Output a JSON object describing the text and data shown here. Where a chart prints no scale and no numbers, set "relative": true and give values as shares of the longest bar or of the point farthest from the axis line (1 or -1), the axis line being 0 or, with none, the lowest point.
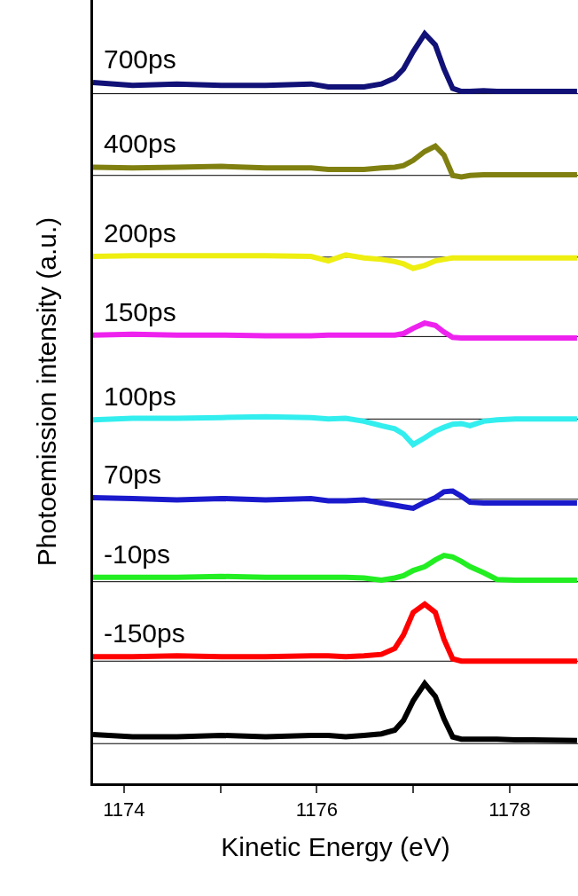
{
  "chart_data": {
    "type": "line",
    "relative": true,
    "xlabel": "Kinetic Energy (eV)",
    "ylabel": "Photoemission intensity (a.u.)",
    "xlim": [
      1173.68,
      1178.71
    ],
    "xticks": [
      1174,
      {
        "value": 1175,
        "label": null
      },
      1176,
      {
        "value": 1177,
        "label": null
      },
      1178
    ],
    "x": [
      1173.68,
      1174.09,
      1174.55,
      1175.01,
      1175.47,
      1175.94,
      1176.12,
      1176.3,
      1176.49,
      1176.67,
      1176.81,
      1176.9,
      1177.0,
      1177.12,
      1177.23,
      1177.32,
      1177.41,
      1177.5,
      1177.59,
      1177.73,
      1177.87,
      1178.06,
      1178.24,
      1178.7
    ],
    "grid": false,
    "legend": false,
    "marker": "none",
    "line_style": "solid",
    "series": [
      {
        "color": "#000000",
        "values": [
          0.065,
          0.062,
          0.062,
          0.064,
          0.062,
          0.064,
          0.064,
          0.062,
          0.064,
          0.066,
          0.071,
          0.084,
          0.11,
          0.133,
          0.116,
          0.086,
          0.062,
          0.059,
          0.059,
          0.059,
          0.059,
          0.058,
          0.058,
          0.057
        ]
      },
      {
        "name": "-150ps",
        "color": "#ff0000",
        "values": [
          0.169,
          0.169,
          0.17,
          0.169,
          0.169,
          0.17,
          0.17,
          0.169,
          0.17,
          0.172,
          0.18,
          0.198,
          0.228,
          0.239,
          0.228,
          0.192,
          0.166,
          0.163,
          0.163,
          0.163,
          0.163,
          0.163,
          0.163,
          0.163
        ]
      },
      {
        "name": "-10ps",
        "color": "#22ee22",
        "values": [
          0.275,
          0.275,
          0.275,
          0.276,
          0.275,
          0.275,
          0.275,
          0.275,
          0.274,
          0.271,
          0.274,
          0.277,
          0.284,
          0.289,
          0.298,
          0.304,
          0.302,
          0.296,
          0.289,
          0.281,
          0.272,
          0.271,
          0.271,
          0.271
        ]
      },
      {
        "name": "70ps",
        "color": "#1a1acc",
        "values": [
          0.381,
          0.38,
          0.378,
          0.38,
          0.378,
          0.38,
          0.377,
          0.377,
          0.378,
          0.374,
          0.371,
          0.369,
          0.367,
          0.375,
          0.381,
          0.389,
          0.39,
          0.383,
          0.375,
          0.374,
          0.374,
          0.374,
          0.374,
          0.374
        ]
      },
      {
        "name": "100ps",
        "color": "#33eeee",
        "values": [
          0.485,
          0.487,
          0.487,
          0.488,
          0.489,
          0.488,
          0.486,
          0.487,
          0.483,
          0.477,
          0.473,
          0.466,
          0.452,
          0.461,
          0.47,
          0.475,
          0.479,
          0.48,
          0.477,
          0.483,
          0.485,
          0.486,
          0.486,
          0.486
        ]
      },
      {
        "name": "150ps",
        "color": "#ee22ee",
        "values": [
          0.598,
          0.599,
          0.598,
          0.598,
          0.597,
          0.597,
          0.598,
          0.598,
          0.598,
          0.598,
          0.598,
          0.6,
          0.607,
          0.614,
          0.611,
          0.602,
          0.595,
          0.594,
          0.594,
          0.594,
          0.594,
          0.594,
          0.594,
          0.594
        ]
      },
      {
        "name": "200ps",
        "color": "#eeee11",
        "values": [
          0.703,
          0.704,
          0.704,
          0.704,
          0.704,
          0.703,
          0.697,
          0.705,
          0.701,
          0.699,
          0.696,
          0.693,
          0.687,
          0.691,
          0.697,
          0.699,
          0.701,
          0.701,
          0.701,
          0.701,
          0.701,
          0.701,
          0.701,
          0.701
        ]
      },
      {
        "name": "400ps",
        "color": "#808011",
        "values": [
          0.822,
          0.821,
          0.822,
          0.823,
          0.821,
          0.821,
          0.819,
          0.819,
          0.819,
          0.821,
          0.822,
          0.824,
          0.831,
          0.843,
          0.85,
          0.838,
          0.811,
          0.809,
          0.811,
          0.812,
          0.812,
          0.812,
          0.812,
          0.812
        ]
      },
      {
        "name": "700ps",
        "color": "#111177",
        "values": [
          0.935,
          0.931,
          0.933,
          0.931,
          0.931,
          0.933,
          0.929,
          0.929,
          0.929,
          0.933,
          0.941,
          0.953,
          0.976,
          1.0,
          0.985,
          0.953,
          0.927,
          0.923,
          0.923,
          0.924,
          0.923,
          0.923,
          0.923,
          0.923
        ]
      }
    ],
    "ref_lines": [
      {
        "axis": "y",
        "value": 0.053,
        "color": "#000000"
      },
      {
        "axis": "y",
        "value": 0.163,
        "color": "#000000"
      },
      {
        "axis": "y",
        "value": 0.269,
        "color": "#000000"
      },
      {
        "axis": "y",
        "value": 0.379,
        "color": "#000000"
      },
      {
        "axis": "y",
        "value": 0.486,
        "color": "#000000"
      },
      {
        "axis": "y",
        "value": 0.596,
        "color": "#000000"
      },
      {
        "axis": "y",
        "value": 0.702,
        "color": "#000000"
      },
      {
        "axis": "y",
        "value": 0.811,
        "color": "#000000"
      },
      {
        "axis": "y",
        "value": 0.92,
        "color": "#000000"
      }
    ]
  }
}
